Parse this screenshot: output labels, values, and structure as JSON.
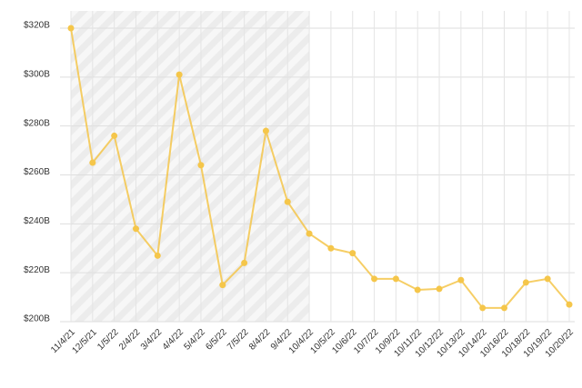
{
  "chart_data": {
    "type": "line",
    "categories": [
      "11/4/21",
      "12/5/21",
      "1/5/22",
      "2/4/22",
      "3/4/22",
      "4/4/22",
      "5/4/22",
      "6/5/22",
      "7/5/22",
      "8/4/22",
      "9/4/22",
      "10/4/22",
      "10/5/22",
      "10/6/22",
      "10/7/22",
      "10/9/22",
      "10/11/22",
      "10/12/22",
      "10/13/22",
      "10/14/22",
      "10/16/22",
      "10/18/22",
      "10/19/22",
      "10/20/22"
    ],
    "series": [
      {
        "color": "#f5c64a",
        "values": [
          320,
          265,
          276,
          238,
          227,
          301,
          264,
          215,
          224,
          278,
          249,
          236,
          230,
          228,
          217.5,
          217.5,
          213,
          213.4,
          217,
          205.6,
          205.6,
          216,
          217.5,
          207
        ]
      }
    ],
    "ylim": [
      200,
      320
    ],
    "yticks": [
      {
        "value": 200,
        "label": "$200B"
      },
      {
        "value": 220,
        "label": "$220B"
      },
      {
        "value": 240,
        "label": "$240B"
      },
      {
        "value": 260,
        "label": "$260B"
      },
      {
        "value": 280,
        "label": "$280B"
      },
      {
        "value": 300,
        "label": "$300B"
      },
      {
        "value": 320,
        "label": "$320B"
      }
    ],
    "grid": true
  }
}
